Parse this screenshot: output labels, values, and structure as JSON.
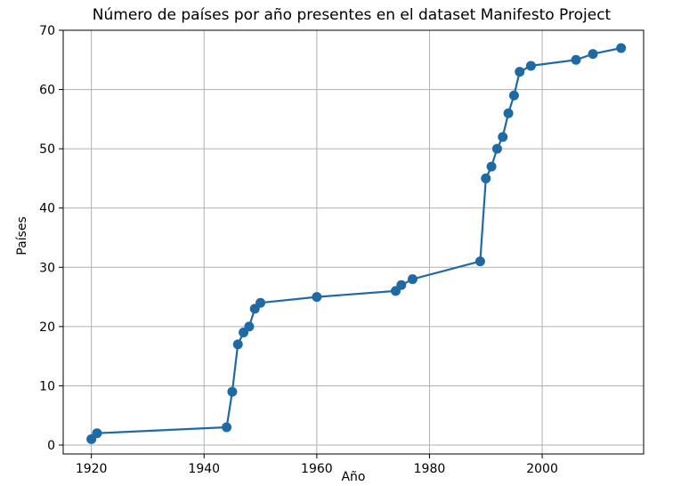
{
  "chart_data": {
    "type": "line",
    "title": "Número de países por año presentes en el dataset Manifesto Project",
    "xlabel": "Año",
    "ylabel": "Países",
    "xlim": [
      1915,
      2018
    ],
    "ylim": [
      -1.5,
      70
    ],
    "xticks": [
      1920,
      1940,
      1960,
      1980,
      2000
    ],
    "yticks": [
      0,
      10,
      20,
      30,
      40,
      50,
      60,
      70
    ],
    "grid": true,
    "series": [
      {
        "name": "Países",
        "color": "#1f6aa5",
        "marker": "circle",
        "x": [
          1920,
          1921,
          1944,
          1945,
          1946,
          1947,
          1948,
          1949,
          1950,
          1960,
          1974,
          1975,
          1977,
          1989,
          1990,
          1991,
          1992,
          1993,
          1994,
          1995,
          1996,
          1998,
          2006,
          2009,
          2014
        ],
        "y": [
          1,
          2,
          3,
          9,
          17,
          19,
          20,
          23,
          24,
          25,
          26,
          27,
          28,
          31,
          45,
          47,
          50,
          52,
          56,
          59,
          63,
          64,
          65,
          66,
          67
        ]
      }
    ]
  }
}
